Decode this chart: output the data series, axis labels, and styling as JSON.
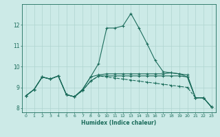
{
  "title": "",
  "xlabel": "Humidex (Indice chaleur)",
  "background_color": "#cceae7",
  "grid_color": "#aed4d0",
  "line_color": "#1a6b5a",
  "xlim": [
    -0.5,
    23.5
  ],
  "ylim": [
    7.8,
    13.0
  ],
  "yticks": [
    8,
    9,
    10,
    11,
    12
  ],
  "xticks": [
    0,
    1,
    2,
    3,
    4,
    5,
    6,
    7,
    8,
    9,
    10,
    11,
    12,
    13,
    14,
    15,
    16,
    17,
    18,
    19,
    20,
    21,
    22,
    23
  ],
  "series": [
    {
      "x": [
        0,
        1,
        2,
        3,
        4,
        5,
        6,
        7,
        8,
        9,
        10,
        11,
        12,
        13,
        14,
        15,
        16,
        17,
        18,
        19,
        20,
        21,
        22,
        23
      ],
      "y": [
        8.6,
        8.9,
        9.5,
        9.4,
        9.55,
        8.65,
        8.55,
        8.9,
        9.5,
        10.15,
        11.85,
        11.85,
        11.95,
        12.55,
        11.85,
        11.1,
        10.3,
        9.75,
        9.7,
        9.65,
        9.5,
        8.5,
        8.5,
        8.05
      ],
      "linestyle": "-",
      "marker": "+"
    },
    {
      "x": [
        0,
        1,
        2,
        3,
        4,
        5,
        6,
        7,
        8,
        9,
        10,
        11,
        12,
        13,
        14,
        15,
        16,
        17,
        18,
        19,
        20,
        21,
        22,
        23
      ],
      "y": [
        8.6,
        8.9,
        9.5,
        9.4,
        9.55,
        8.65,
        8.55,
        8.9,
        9.5,
        9.6,
        9.65,
        9.65,
        9.65,
        9.65,
        9.65,
        9.65,
        9.65,
        9.65,
        9.7,
        9.65,
        9.6,
        8.5,
        8.5,
        8.05
      ],
      "linestyle": "-",
      "marker": "+"
    },
    {
      "x": [
        0,
        1,
        2,
        3,
        4,
        5,
        6,
        7,
        8,
        9,
        10,
        11,
        12,
        13,
        14,
        15,
        16,
        17,
        18,
        19,
        20,
        21,
        22,
        23
      ],
      "y": [
        8.6,
        8.9,
        9.5,
        9.4,
        9.55,
        8.65,
        8.55,
        8.85,
        9.3,
        9.55,
        9.55,
        9.55,
        9.55,
        9.55,
        9.55,
        9.55,
        9.55,
        9.55,
        9.55,
        9.55,
        9.5,
        8.5,
        8.5,
        8.05
      ],
      "linestyle": "-",
      "marker": "+"
    },
    {
      "x": [
        0,
        1,
        2,
        3,
        4,
        5,
        6,
        7,
        8,
        9,
        10,
        11,
        12,
        13,
        14,
        15,
        16,
        17,
        18,
        19,
        20,
        21,
        22,
        23
      ],
      "y": [
        8.6,
        8.9,
        9.5,
        9.4,
        9.55,
        8.65,
        8.55,
        8.85,
        9.3,
        9.55,
        9.5,
        9.45,
        9.4,
        9.35,
        9.3,
        9.25,
        9.2,
        9.15,
        9.1,
        9.05,
        9.0,
        8.5,
        8.5,
        8.05
      ],
      "linestyle": "--",
      "marker": "+"
    }
  ]
}
